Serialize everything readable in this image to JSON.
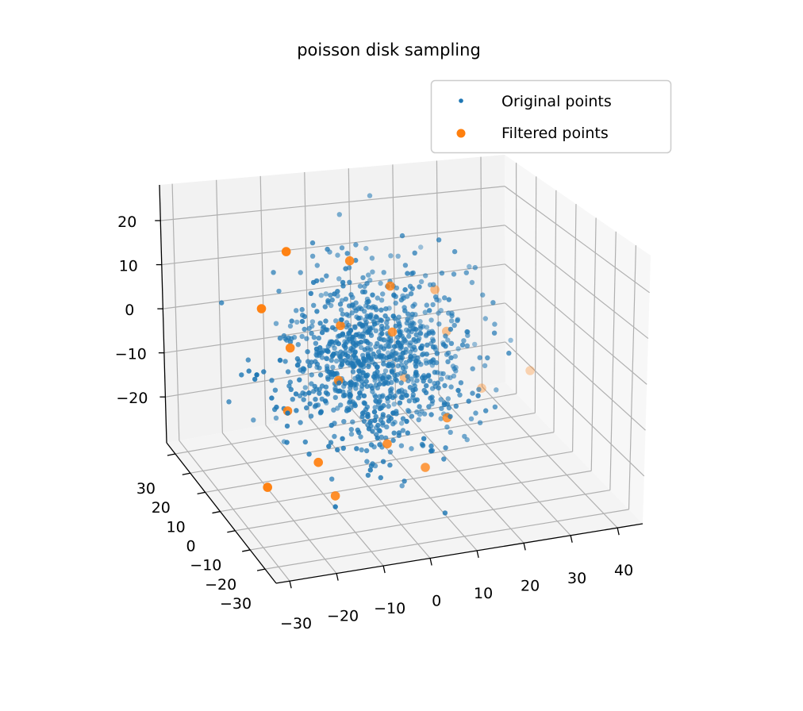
{
  "chart_data": {
    "type": "scatter",
    "projection": "3d",
    "title": "poisson disk sampling",
    "xlabel": "",
    "ylabel": "",
    "zlabel": "",
    "xlim": [
      -32.9,
      45.4
    ],
    "ylim": [
      -37.4,
      35.8
    ],
    "zlim": [
      -30.4,
      28.1
    ],
    "x_ticks": [
      -30,
      -20,
      -10,
      0,
      10,
      20,
      30,
      40
    ],
    "x_tick_labels": [
      "−30",
      "−20",
      "−10",
      "0",
      "10",
      "20",
      "30",
      "40"
    ],
    "y_ticks": [
      30,
      20,
      10,
      0,
      -10,
      -20,
      -30
    ],
    "y_tick_labels": [
      "30",
      "20",
      "10",
      "0",
      "−10",
      "−20",
      "−30"
    ],
    "z_ticks": [
      20,
      10,
      0,
      -10,
      -20
    ],
    "z_tick_labels": [
      "20",
      "10",
      "0",
      "−10",
      "−20"
    ],
    "grid": true,
    "legend": {
      "placement": "top-right",
      "entries": [
        {
          "label": "Original points",
          "color": "#1f77b4"
        },
        {
          "label": "Filtered points",
          "color": "#ff7f0e"
        }
      ]
    },
    "series": [
      {
        "name": "Original points",
        "color": "#1f77b4",
        "generator": {
          "distribution": "normal",
          "count": 1000,
          "mean": [
            2,
            0,
            -2
          ],
          "std": [
            10,
            11,
            9
          ],
          "seed": 7
        }
      },
      {
        "name": "Filtered points",
        "color": "#ff7f0e",
        "points": [
          [
            -21.5,
            -10,
            29.6
          ],
          [
            -7.8,
            -10,
            25.7
          ],
          [
            1.0,
            -10,
            18.8
          ],
          [
            -26.9,
            -10,
            17.7
          ],
          [
            -9.8,
            -10,
            11.5
          ],
          [
            1.5,
            -10,
            8.4
          ],
          [
            -20.7,
            -10,
            8.1
          ],
          [
            -10.2,
            -10,
            -0.7
          ],
          [
            -21.3,
            -10,
            -5.8
          ],
          [
            20.7,
            15,
            5.7
          ],
          [
            23.3,
            15,
            -4.6
          ],
          [
            13.8,
            15,
            -14.0
          ],
          [
            42.1,
            15,
            -17.1
          ],
          [
            31.2,
            15,
            -19.5
          ],
          [
            9.7,
            -20,
            -8.2
          ],
          [
            -3.2,
            -20,
            -11.9
          ],
          [
            -18.1,
            -20,
            -13.6
          ],
          [
            5.1,
            -20,
            -18.5
          ],
          [
            -29.1,
            -20,
            -17.3
          ],
          [
            -14.4,
            -20,
            -21.6
          ]
        ]
      }
    ]
  }
}
